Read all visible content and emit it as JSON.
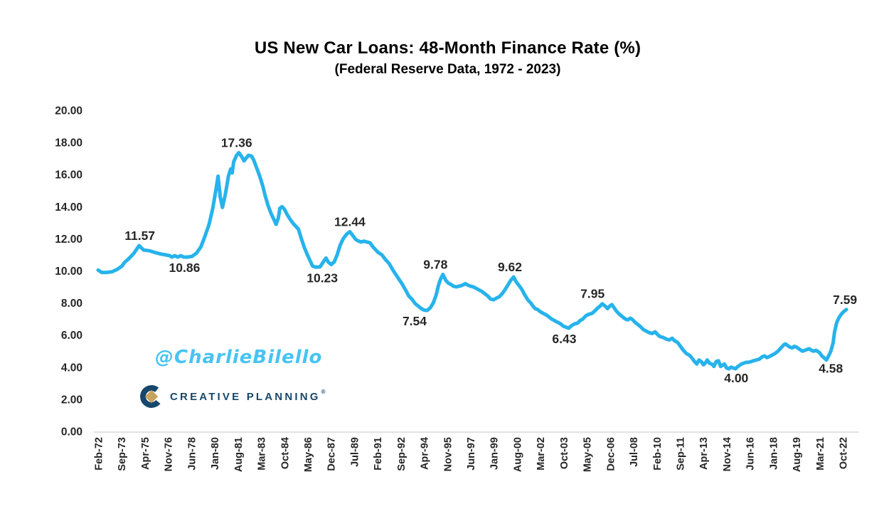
{
  "title": "US New Car Loans: 48-Month Finance Rate (%)",
  "subtitle": "(Federal Reserve Data, 1972 - 2023)",
  "watermark": "@CharlieBilello",
  "logo": {
    "text": "CREATIVE PLANNING",
    "trademark": "®"
  },
  "colors": {
    "line": "#27b3eb",
    "text": "#262626",
    "axis": "#d9d9d9",
    "watermark": "#47c4f2",
    "logo_navy": "#17476a",
    "logo_gold": "#c8a25f",
    "background": "#ffffff"
  },
  "chart_data": {
    "type": "line",
    "title": "US New Car Loans: 48-Month Finance Rate (%)",
    "subtitle": "(Federal Reserve Data, 1972 - 2023)",
    "grid": false,
    "legend": "none",
    "ylim": [
      0,
      20
    ],
    "y_axis": {
      "min": 0,
      "max": 20,
      "step": 2,
      "tick_labels": [
        "20.00",
        "18.00",
        "16.00",
        "14.00",
        "12.00",
        "10.00",
        "8.00",
        "6.00",
        "4.00",
        "2.00",
        "0.00"
      ]
    },
    "x_axis": {
      "unit": "fraction 0-1 spans ticks Feb-72 to Oct-22",
      "tick_labels": [
        "Feb-72",
        "Sep-73",
        "Apr-75",
        "Nov-76",
        "Jun-78",
        "Jan-80",
        "Aug-81",
        "Mar-83",
        "Oct-84",
        "May-86",
        "Dec-87",
        "Jul-89",
        "Feb-91",
        "Sep-92",
        "Apr-94",
        "Nov-95",
        "Jun-97",
        "Jan-99",
        "Aug-00",
        "Mar-02",
        "Oct-03",
        "May-05",
        "Dec-06",
        "Jul-08",
        "Feb-10",
        "Sep-11",
        "Apr-13",
        "Nov-14",
        "Jun-16",
        "Jan-18",
        "Aug-19",
        "Mar-21",
        "Oct-22"
      ]
    },
    "annotations": [
      {
        "label": "11.57",
        "value": 11.57,
        "x": 0.056,
        "position": "above"
      },
      {
        "label": "10.86",
        "value": 10.86,
        "x": 0.116,
        "position": "below"
      },
      {
        "label": "17.36",
        "value": 17.36,
        "x": 0.186,
        "position": "above"
      },
      {
        "label": "10.23",
        "value": 10.23,
        "x": 0.301,
        "position": "below"
      },
      {
        "label": "12.44",
        "value": 12.44,
        "x": 0.338,
        "position": "above"
      },
      {
        "label": "7.54",
        "value": 7.54,
        "x": 0.425,
        "position": "below"
      },
      {
        "label": "9.78",
        "value": 9.78,
        "x": 0.453,
        "position": "above"
      },
      {
        "label": "9.62",
        "value": 9.62,
        "x": 0.553,
        "position": "above"
      },
      {
        "label": "6.43",
        "value": 6.43,
        "x": 0.626,
        "position": "below"
      },
      {
        "label": "7.95",
        "value": 7.95,
        "x": 0.664,
        "position": "above"
      },
      {
        "label": "4.00",
        "value": 4.0,
        "x": 0.857,
        "position": "below"
      },
      {
        "label": "4.58",
        "value": 4.58,
        "x": 0.984,
        "position": "below"
      },
      {
        "label": "7.59",
        "value": 7.59,
        "x": 1.003,
        "position": "above"
      }
    ],
    "series": [
      {
        "name": "48-month new car loan finance rate",
        "points": [
          [
            0.0,
            10.05
          ],
          [
            0.005,
            9.9
          ],
          [
            0.011,
            9.9
          ],
          [
            0.019,
            9.95
          ],
          [
            0.026,
            10.1
          ],
          [
            0.032,
            10.3
          ],
          [
            0.035,
            10.5
          ],
          [
            0.042,
            10.8
          ],
          [
            0.048,
            11.1
          ],
          [
            0.055,
            11.57
          ],
          [
            0.061,
            11.3
          ],
          [
            0.069,
            11.25
          ],
          [
            0.076,
            11.15
          ],
          [
            0.084,
            11.05
          ],
          [
            0.09,
            11.0
          ],
          [
            0.096,
            10.95
          ],
          [
            0.099,
            10.86
          ],
          [
            0.103,
            10.95
          ],
          [
            0.107,
            10.86
          ],
          [
            0.111,
            10.95
          ],
          [
            0.115,
            10.86
          ],
          [
            0.12,
            10.86
          ],
          [
            0.126,
            10.9
          ],
          [
            0.132,
            11.1
          ],
          [
            0.138,
            11.5
          ],
          [
            0.143,
            12.1
          ],
          [
            0.149,
            12.9
          ],
          [
            0.154,
            13.9
          ],
          [
            0.158,
            15.0
          ],
          [
            0.161,
            15.9
          ],
          [
            0.164,
            14.6
          ],
          [
            0.167,
            13.95
          ],
          [
            0.171,
            14.8
          ],
          [
            0.175,
            15.9
          ],
          [
            0.178,
            16.35
          ],
          [
            0.18,
            16.1
          ],
          [
            0.182,
            16.8
          ],
          [
            0.186,
            17.2
          ],
          [
            0.189,
            17.36
          ],
          [
            0.193,
            17.1
          ],
          [
            0.196,
            16.85
          ],
          [
            0.2,
            17.1
          ],
          [
            0.202,
            17.2
          ],
          [
            0.206,
            17.15
          ],
          [
            0.209,
            16.9
          ],
          [
            0.213,
            16.4
          ],
          [
            0.217,
            15.9
          ],
          [
            0.221,
            15.3
          ],
          [
            0.224,
            14.75
          ],
          [
            0.228,
            14.1
          ],
          [
            0.232,
            13.6
          ],
          [
            0.236,
            13.2
          ],
          [
            0.239,
            12.9
          ],
          [
            0.242,
            13.3
          ],
          [
            0.244,
            13.9
          ],
          [
            0.247,
            14.0
          ],
          [
            0.25,
            13.85
          ],
          [
            0.254,
            13.5
          ],
          [
            0.258,
            13.2
          ],
          [
            0.262,
            12.95
          ],
          [
            0.265,
            12.8
          ],
          [
            0.269,
            12.6
          ],
          [
            0.273,
            12.0
          ],
          [
            0.277,
            11.45
          ],
          [
            0.281,
            11.0
          ],
          [
            0.285,
            10.6
          ],
          [
            0.288,
            10.3
          ],
          [
            0.292,
            10.23
          ],
          [
            0.298,
            10.25
          ],
          [
            0.303,
            10.6
          ],
          [
            0.306,
            10.8
          ],
          [
            0.309,
            10.55
          ],
          [
            0.313,
            10.4
          ],
          [
            0.317,
            10.55
          ],
          [
            0.321,
            11.0
          ],
          [
            0.325,
            11.6
          ],
          [
            0.329,
            12.0
          ],
          [
            0.334,
            12.3
          ],
          [
            0.338,
            12.44
          ],
          [
            0.342,
            12.2
          ],
          [
            0.346,
            11.95
          ],
          [
            0.35,
            11.85
          ],
          [
            0.353,
            11.8
          ],
          [
            0.357,
            11.85
          ],
          [
            0.361,
            11.8
          ],
          [
            0.365,
            11.75
          ],
          [
            0.369,
            11.5
          ],
          [
            0.372,
            11.35
          ],
          [
            0.376,
            11.15
          ],
          [
            0.381,
            11.0
          ],
          [
            0.386,
            10.7
          ],
          [
            0.391,
            10.45
          ],
          [
            0.394,
            10.2
          ],
          [
            0.398,
            9.9
          ],
          [
            0.403,
            9.55
          ],
          [
            0.408,
            9.2
          ],
          [
            0.413,
            8.8
          ],
          [
            0.417,
            8.45
          ],
          [
            0.422,
            8.2
          ],
          [
            0.426,
            7.95
          ],
          [
            0.43,
            7.8
          ],
          [
            0.434,
            7.65
          ],
          [
            0.438,
            7.55
          ],
          [
            0.442,
            7.54
          ],
          [
            0.446,
            7.7
          ],
          [
            0.45,
            8.0
          ],
          [
            0.454,
            8.5
          ],
          [
            0.457,
            9.1
          ],
          [
            0.46,
            9.5
          ],
          [
            0.463,
            9.78
          ],
          [
            0.467,
            9.4
          ],
          [
            0.47,
            9.25
          ],
          [
            0.474,
            9.15
          ],
          [
            0.477,
            9.05
          ],
          [
            0.481,
            9.0
          ],
          [
            0.485,
            9.05
          ],
          [
            0.489,
            9.1
          ],
          [
            0.493,
            9.2
          ],
          [
            0.497,
            9.1
          ],
          [
            0.5,
            9.05
          ],
          [
            0.504,
            9.0
          ],
          [
            0.508,
            8.9
          ],
          [
            0.512,
            8.8
          ],
          [
            0.516,
            8.7
          ],
          [
            0.52,
            8.55
          ],
          [
            0.523,
            8.45
          ],
          [
            0.527,
            8.25
          ],
          [
            0.531,
            8.2
          ],
          [
            0.535,
            8.3
          ],
          [
            0.539,
            8.4
          ],
          [
            0.542,
            8.55
          ],
          [
            0.546,
            8.8
          ],
          [
            0.55,
            9.1
          ],
          [
            0.554,
            9.4
          ],
          [
            0.558,
            9.62
          ],
          [
            0.561,
            9.35
          ],
          [
            0.565,
            9.1
          ],
          [
            0.569,
            8.85
          ],
          [
            0.573,
            8.5
          ],
          [
            0.577,
            8.2
          ],
          [
            0.581,
            8.0
          ],
          [
            0.584,
            7.8
          ],
          [
            0.587,
            7.65
          ],
          [
            0.59,
            7.6
          ],
          [
            0.594,
            7.45
          ],
          [
            0.598,
            7.35
          ],
          [
            0.602,
            7.25
          ],
          [
            0.605,
            7.15
          ],
          [
            0.609,
            7.0
          ],
          [
            0.613,
            6.9
          ],
          [
            0.617,
            6.8
          ],
          [
            0.621,
            6.7
          ],
          [
            0.625,
            6.55
          ],
          [
            0.628,
            6.5
          ],
          [
            0.632,
            6.43
          ],
          [
            0.636,
            6.6
          ],
          [
            0.64,
            6.7
          ],
          [
            0.644,
            6.75
          ],
          [
            0.647,
            6.9
          ],
          [
            0.651,
            7.0
          ],
          [
            0.655,
            7.2
          ],
          [
            0.659,
            7.3
          ],
          [
            0.663,
            7.35
          ],
          [
            0.667,
            7.5
          ],
          [
            0.67,
            7.65
          ],
          [
            0.674,
            7.8
          ],
          [
            0.677,
            7.95
          ],
          [
            0.681,
            7.8
          ],
          [
            0.684,
            7.65
          ],
          [
            0.687,
            7.8
          ],
          [
            0.69,
            7.9
          ],
          [
            0.693,
            7.7
          ],
          [
            0.696,
            7.5
          ],
          [
            0.7,
            7.3
          ],
          [
            0.704,
            7.15
          ],
          [
            0.708,
            7.0
          ],
          [
            0.711,
            6.95
          ],
          [
            0.715,
            7.05
          ],
          [
            0.718,
            6.95
          ],
          [
            0.721,
            6.8
          ],
          [
            0.725,
            6.65
          ],
          [
            0.729,
            6.5
          ],
          [
            0.732,
            6.35
          ],
          [
            0.736,
            6.25
          ],
          [
            0.74,
            6.15
          ],
          [
            0.744,
            6.1
          ],
          [
            0.748,
            6.2
          ],
          [
            0.752,
            6.0
          ],
          [
            0.755,
            5.9
          ],
          [
            0.759,
            5.85
          ],
          [
            0.763,
            5.75
          ],
          [
            0.767,
            5.7
          ],
          [
            0.771,
            5.8
          ],
          [
            0.774,
            5.65
          ],
          [
            0.778,
            5.55
          ],
          [
            0.782,
            5.3
          ],
          [
            0.786,
            5.05
          ],
          [
            0.79,
            4.85
          ],
          [
            0.794,
            4.75
          ],
          [
            0.797,
            4.6
          ],
          [
            0.801,
            4.35
          ],
          [
            0.804,
            4.2
          ],
          [
            0.807,
            4.45
          ],
          [
            0.81,
            4.35
          ],
          [
            0.813,
            4.15
          ],
          [
            0.816,
            4.3
          ],
          [
            0.818,
            4.45
          ],
          [
            0.821,
            4.25
          ],
          [
            0.824,
            4.2
          ],
          [
            0.827,
            4.05
          ],
          [
            0.83,
            4.35
          ],
          [
            0.833,
            4.4
          ],
          [
            0.836,
            4.05
          ],
          [
            0.838,
            4.1
          ],
          [
            0.841,
            4.2
          ],
          [
            0.844,
            3.95
          ],
          [
            0.847,
            3.9
          ],
          [
            0.85,
            4.0
          ],
          [
            0.853,
            3.95
          ],
          [
            0.856,
            3.9
          ],
          [
            0.858,
            4.0
          ],
          [
            0.861,
            4.1
          ],
          [
            0.864,
            4.2
          ],
          [
            0.867,
            4.25
          ],
          [
            0.87,
            4.3
          ],
          [
            0.873,
            4.3
          ],
          [
            0.877,
            4.35
          ],
          [
            0.88,
            4.4
          ],
          [
            0.884,
            4.45
          ],
          [
            0.888,
            4.5
          ],
          [
            0.892,
            4.65
          ],
          [
            0.895,
            4.7
          ],
          [
            0.898,
            4.6
          ],
          [
            0.901,
            4.65
          ],
          [
            0.905,
            4.75
          ],
          [
            0.909,
            4.85
          ],
          [
            0.913,
            5.0
          ],
          [
            0.917,
            5.2
          ],
          [
            0.921,
            5.4
          ],
          [
            0.923,
            5.45
          ],
          [
            0.926,
            5.35
          ],
          [
            0.929,
            5.25
          ],
          [
            0.932,
            5.2
          ],
          [
            0.935,
            5.3
          ],
          [
            0.938,
            5.25
          ],
          [
            0.941,
            5.15
          ],
          [
            0.944,
            5.05
          ],
          [
            0.946,
            5.0
          ],
          [
            0.949,
            5.05
          ],
          [
            0.952,
            5.1
          ],
          [
            0.955,
            5.15
          ],
          [
            0.958,
            5.05
          ],
          [
            0.961,
            5.0
          ],
          [
            0.964,
            5.05
          ],
          [
            0.966,
            5.0
          ],
          [
            0.969,
            4.9
          ],
          [
            0.972,
            4.7
          ],
          [
            0.975,
            4.58
          ],
          [
            0.978,
            4.45
          ],
          [
            0.981,
            4.7
          ],
          [
            0.984,
            5.0
          ],
          [
            0.987,
            5.5
          ],
          [
            0.989,
            6.2
          ],
          [
            0.992,
            6.8
          ],
          [
            0.995,
            7.1
          ],
          [
            0.998,
            7.3
          ],
          [
            1.001,
            7.45
          ],
          [
            1.005,
            7.59
          ]
        ]
      }
    ]
  }
}
